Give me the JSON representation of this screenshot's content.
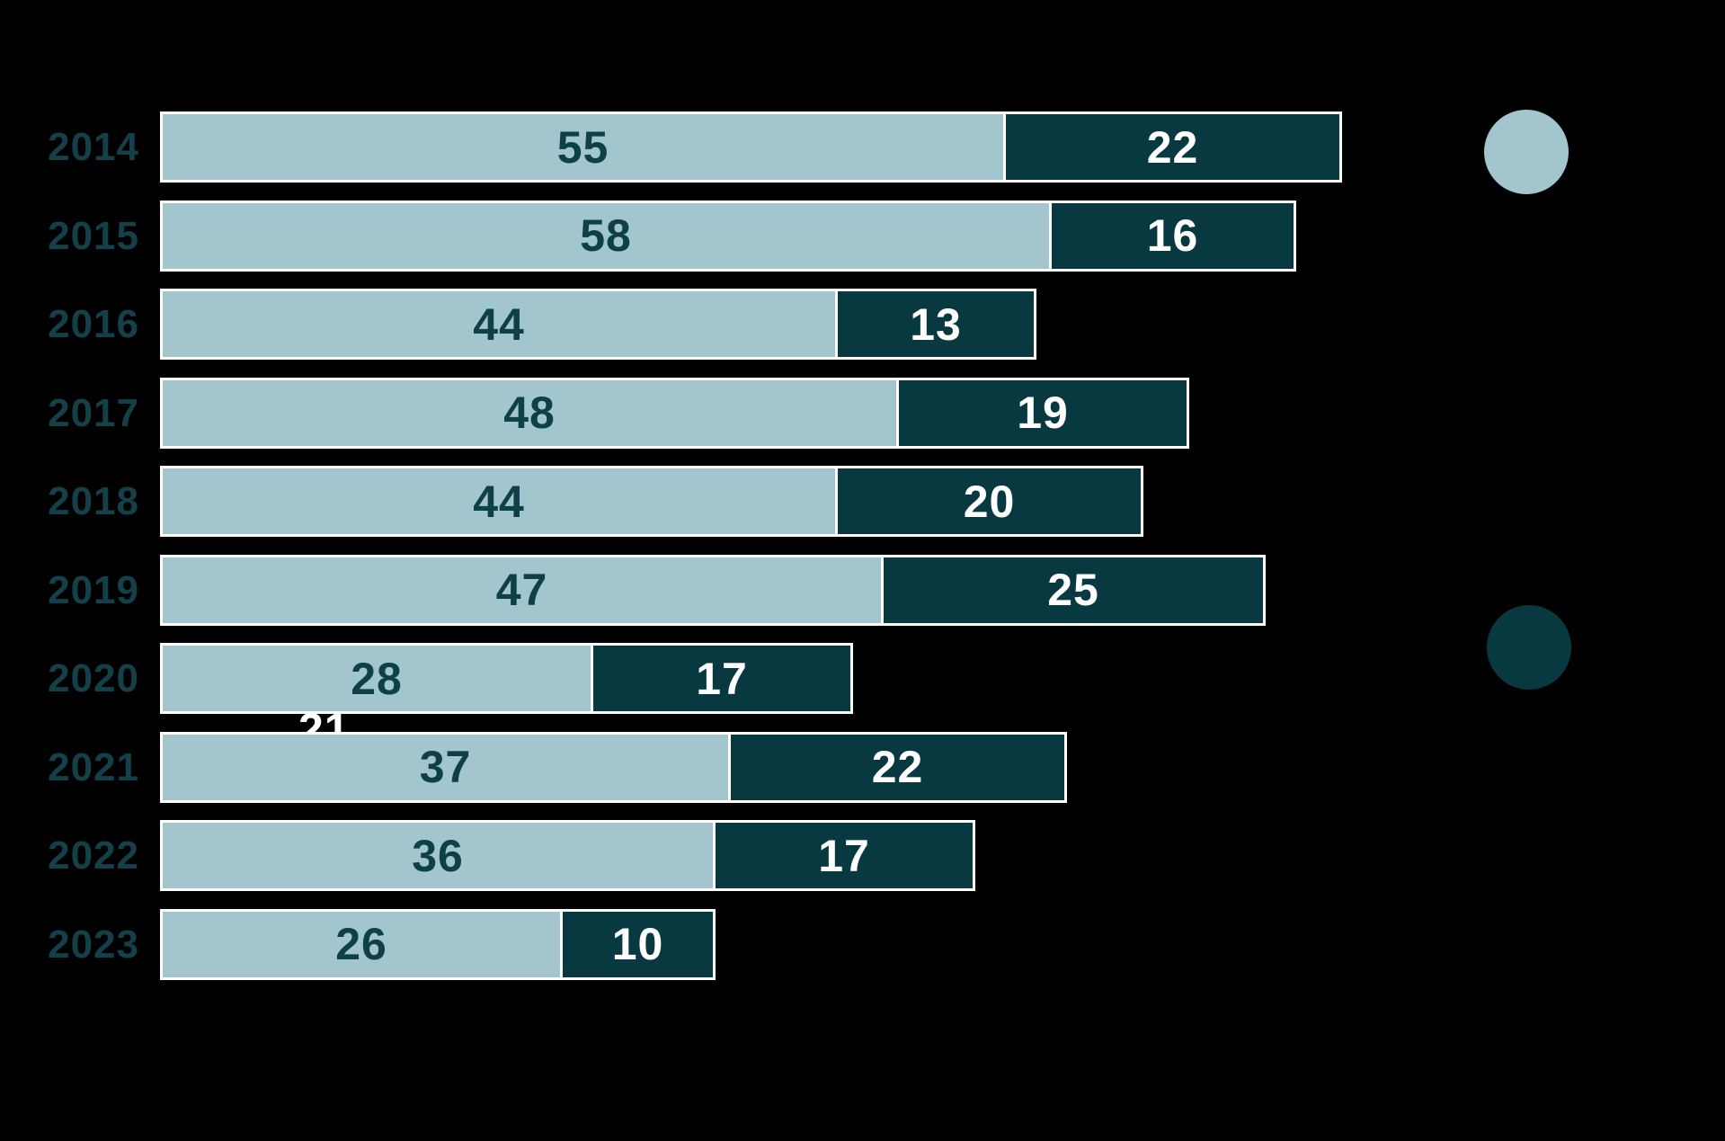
{
  "page": {
    "background": "#000000"
  },
  "chart_data": {
    "type": "bar",
    "orientation": "horizontal",
    "stacked": true,
    "grid": false,
    "axes_visible": false,
    "legend_position": "right",
    "categories": [
      "2014",
      "2015",
      "2016",
      "2017",
      "2018",
      "2019",
      "2020",
      "2021",
      "2022",
      "2023"
    ],
    "series": [
      {
        "name": "light-series",
        "color": "#a3c6ce",
        "label_color": "#0e4049",
        "values": [
          55,
          58,
          44,
          48,
          44,
          47,
          28,
          37,
          36,
          26
        ]
      },
      {
        "name": "dark-series",
        "color": "#093940",
        "label_color": "#ffffff",
        "values": [
          22,
          16,
          13,
          19,
          20,
          25,
          17,
          22,
          17,
          10
        ]
      }
    ],
    "bar_border_color": "#ffffff",
    "category_label_color": "#144149",
    "legend": [
      {
        "swatch": "circle",
        "color": "#a3c6ce"
      },
      {
        "swatch": "circle",
        "color": "#093940"
      }
    ],
    "stray_label": {
      "text": "21",
      "color": "#ffffff"
    }
  }
}
